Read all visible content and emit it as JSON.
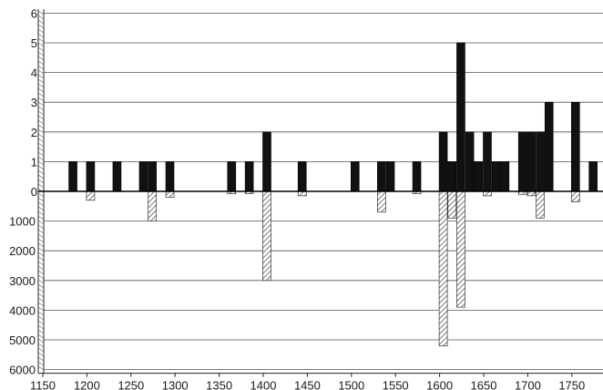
{
  "chart_data": {
    "type": "bar",
    "title": "",
    "xlabel": "",
    "ylabel": "",
    "x_ticks": [
      "1150",
      "1200",
      "1250",
      "1300",
      "1350",
      "1400",
      "1450",
      "1500",
      "1550",
      "1600",
      "1650",
      "1700",
      "1750"
    ],
    "x_range": [
      1150,
      1785
    ],
    "y_upper_ticks": [
      "6",
      "5",
      "4",
      "3",
      "2",
      "1",
      "0"
    ],
    "y_upper_range": [
      0,
      6
    ],
    "y_lower_ticks": [
      "1000",
      "2000",
      "3000",
      "4000",
      "5000",
      "6000"
    ],
    "y_lower_range": [
      0,
      6000
    ],
    "grid": true,
    "colors": {
      "upper_bars": "#111111",
      "lower_bars_hatch": "#555555",
      "grid": "#555555"
    },
    "series": [
      {
        "values": [
          {
            "x": 1180,
            "y": 1
          },
          {
            "x": 1200,
            "y": 1
          },
          {
            "x": 1230,
            "y": 1
          },
          {
            "x": 1260,
            "y": 1
          },
          {
            "x": 1270,
            "y": 1
          },
          {
            "x": 1290,
            "y": 1
          },
          {
            "x": 1360,
            "y": 1
          },
          {
            "x": 1380,
            "y": 1
          },
          {
            "x": 1400,
            "y": 2
          },
          {
            "x": 1440,
            "y": 1
          },
          {
            "x": 1500,
            "y": 1
          },
          {
            "x": 1530,
            "y": 1
          },
          {
            "x": 1540,
            "y": 1
          },
          {
            "x": 1570,
            "y": 1
          },
          {
            "x": 1600,
            "y": 2
          },
          {
            "x": 1610,
            "y": 1
          },
          {
            "x": 1620,
            "y": 5
          },
          {
            "x": 1630,
            "y": 2
          },
          {
            "x": 1640,
            "y": 1
          },
          {
            "x": 1650,
            "y": 2
          },
          {
            "x": 1660,
            "y": 1
          },
          {
            "x": 1670,
            "y": 1
          },
          {
            "x": 1690,
            "y": 2
          },
          {
            "x": 1700,
            "y": 2
          },
          {
            "x": 1710,
            "y": 2
          },
          {
            "x": 1720,
            "y": 3
          },
          {
            "x": 1750,
            "y": 3
          },
          {
            "x": 1770,
            "y": 1
          }
        ]
      },
      {
        "values": [
          {
            "x": 1200,
            "y": 300
          },
          {
            "x": 1270,
            "y": 1000
          },
          {
            "x": 1290,
            "y": 200
          },
          {
            "x": 1360,
            "y": 80
          },
          {
            "x": 1380,
            "y": 80
          },
          {
            "x": 1400,
            "y": 3000
          },
          {
            "x": 1440,
            "y": 150
          },
          {
            "x": 1530,
            "y": 700
          },
          {
            "x": 1570,
            "y": 80
          },
          {
            "x": 1600,
            "y": 5200
          },
          {
            "x": 1610,
            "y": 900
          },
          {
            "x": 1620,
            "y": 3900
          },
          {
            "x": 1650,
            "y": 150
          },
          {
            "x": 1690,
            "y": 100
          },
          {
            "x": 1700,
            "y": 150
          },
          {
            "x": 1710,
            "y": 900
          },
          {
            "x": 1750,
            "y": 350
          }
        ]
      }
    ]
  }
}
